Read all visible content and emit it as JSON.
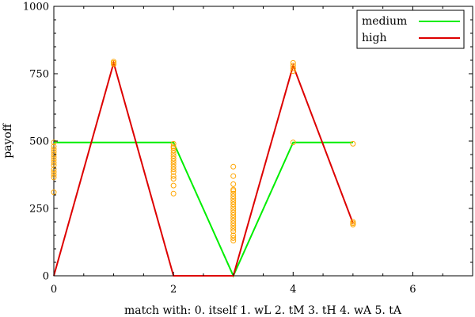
{
  "chart_data": {
    "type": "line",
    "xlabel": "match with: 0. itself    1. wL    2. tM    3. tH    4. wA 5. tA",
    "ylabel": "payoff",
    "xlim": [
      0,
      7
    ],
    "ylim": [
      0,
      1000
    ],
    "x_ticks": [
      0,
      2,
      4,
      6
    ],
    "x_tick_labels": [
      "0",
      "2",
      "4",
      "6"
    ],
    "y_ticks": [
      0,
      250,
      500,
      750,
      1000
    ],
    "y_tick_labels": [
      "0",
      "250",
      "500",
      "750",
      "1000"
    ],
    "grid": false,
    "legend_position": "top-right",
    "series": [
      {
        "name": "medium",
        "color": "#00ee00",
        "x": [
          0,
          1,
          2,
          3,
          4,
          5
        ],
        "y": [
          495,
          495,
          495,
          0,
          495,
          495
        ]
      },
      {
        "name": "high",
        "color": "#dd0000",
        "x": [
          0,
          1,
          2,
          3,
          4,
          5
        ],
        "y": [
          0,
          790,
          0,
          0,
          780,
          195
        ]
      }
    ],
    "scatter": {
      "color": "#ffa500",
      "points": [
        [
          0,
          495
        ],
        [
          0,
          480
        ],
        [
          0,
          470
        ],
        [
          0,
          460
        ],
        [
          0,
          450
        ],
        [
          0,
          440
        ],
        [
          0,
          430
        ],
        [
          0,
          420
        ],
        [
          0,
          410
        ],
        [
          0,
          395
        ],
        [
          0,
          385
        ],
        [
          0,
          375
        ],
        [
          0,
          365
        ],
        [
          0,
          310
        ],
        [
          1,
          795
        ],
        [
          1,
          790
        ],
        [
          1,
          785
        ],
        [
          2,
          490
        ],
        [
          2,
          480
        ],
        [
          2,
          475
        ],
        [
          2,
          465
        ],
        [
          2,
          455
        ],
        [
          2,
          445
        ],
        [
          2,
          435
        ],
        [
          2,
          425
        ],
        [
          2,
          415
        ],
        [
          2,
          405
        ],
        [
          2,
          395
        ],
        [
          2,
          385
        ],
        [
          2,
          370
        ],
        [
          2,
          360
        ],
        [
          2,
          335
        ],
        [
          2,
          305
        ],
        [
          3,
          405
        ],
        [
          3,
          370
        ],
        [
          3,
          340
        ],
        [
          3,
          320
        ],
        [
          3,
          315
        ],
        [
          3,
          305
        ],
        [
          3,
          295
        ],
        [
          3,
          285
        ],
        [
          3,
          275
        ],
        [
          3,
          265
        ],
        [
          3,
          255
        ],
        [
          3,
          245
        ],
        [
          3,
          235
        ],
        [
          3,
          225
        ],
        [
          3,
          215
        ],
        [
          3,
          205
        ],
        [
          3,
          195
        ],
        [
          3,
          185
        ],
        [
          3,
          175
        ],
        [
          3,
          165
        ],
        [
          3,
          150
        ],
        [
          3,
          140
        ],
        [
          3,
          130
        ],
        [
          4,
          790
        ],
        [
          4,
          780
        ],
        [
          4,
          770
        ],
        [
          4,
          760
        ],
        [
          4,
          495
        ],
        [
          5,
          490
        ],
        [
          5,
          200
        ],
        [
          5,
          195
        ],
        [
          5,
          190
        ]
      ]
    }
  }
}
